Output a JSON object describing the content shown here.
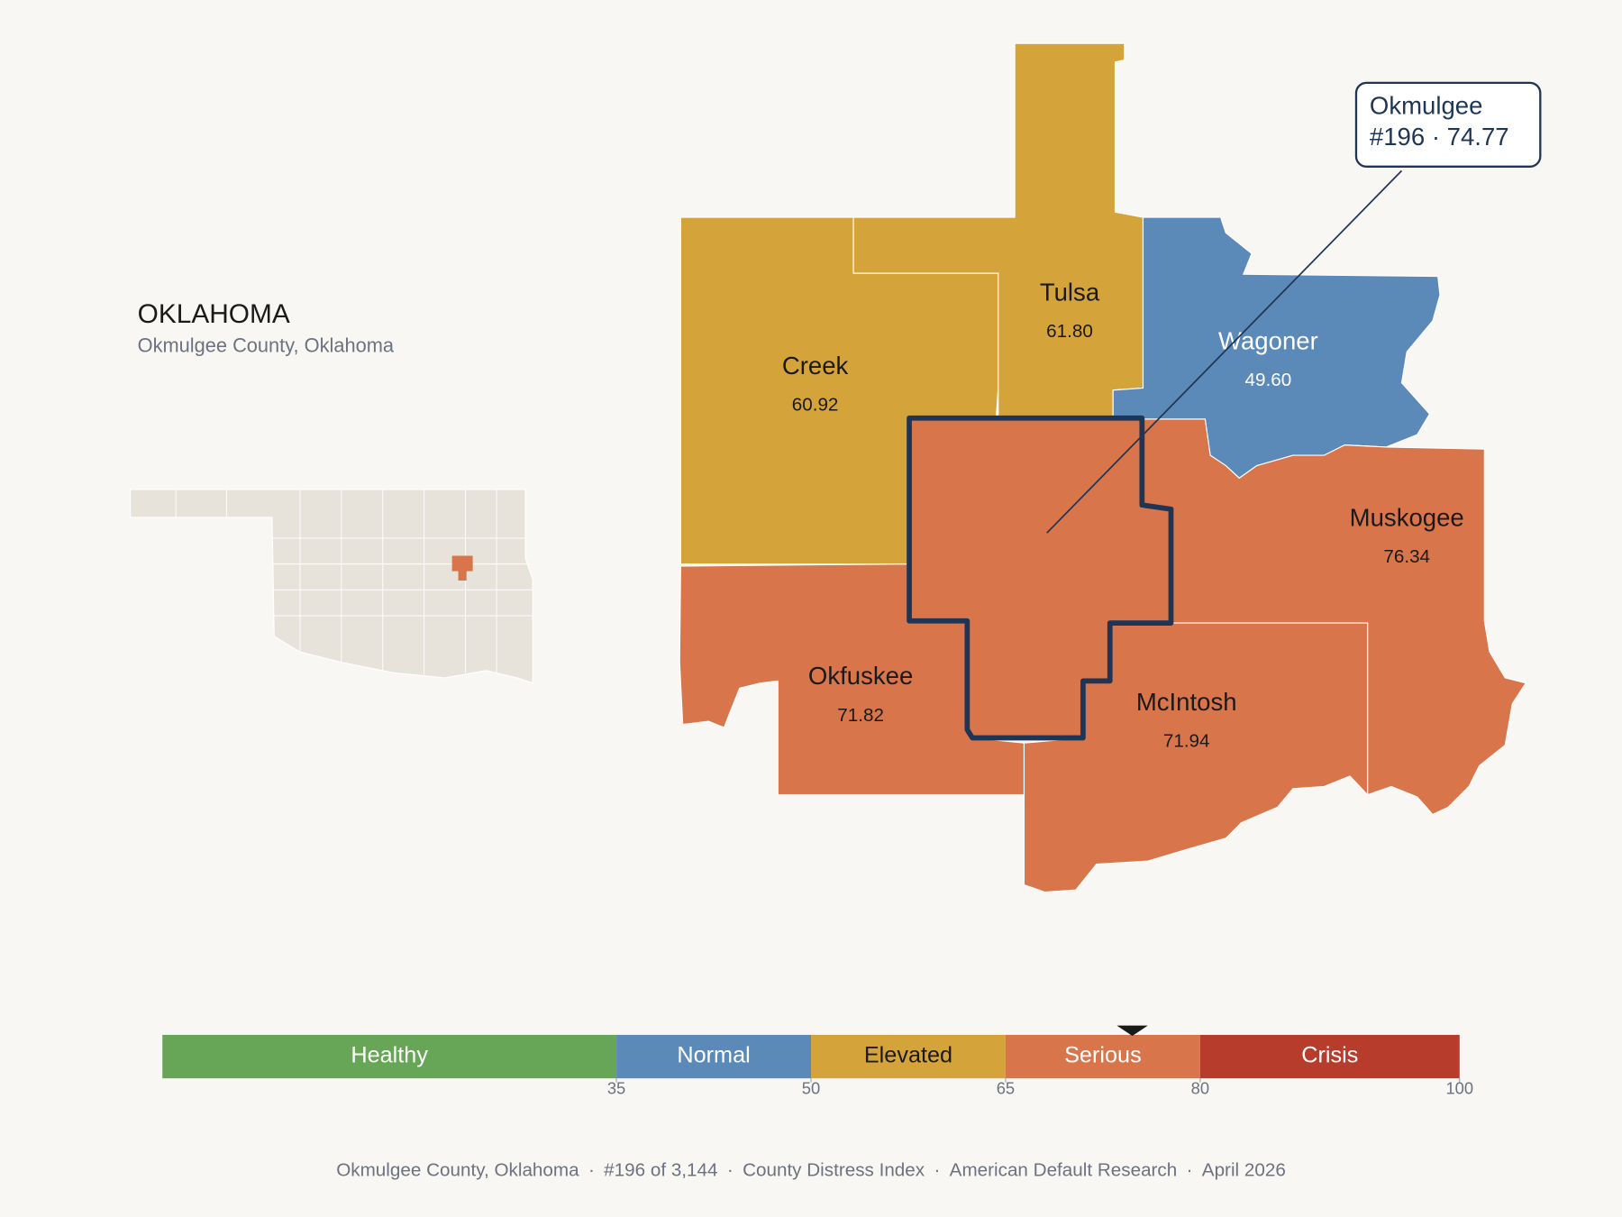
{
  "header": {
    "title": "OKLAHOMA",
    "subtitle": "Okmulgee County, Oklahoma"
  },
  "counties": [
    {
      "name": "Creek",
      "value": 60.92,
      "value_label": "60.92"
    },
    {
      "name": "Tulsa",
      "value": 61.8,
      "value_label": "61.80"
    },
    {
      "name": "Wagoner",
      "value": 49.6,
      "value_label": "49.60"
    },
    {
      "name": "Muskogee",
      "value": 76.34,
      "value_label": "76.34"
    },
    {
      "name": "Okfuskee",
      "value": 71.82,
      "value_label": "71.82"
    },
    {
      "name": "McIntosh",
      "value": 71.94,
      "value_label": "71.94"
    }
  ],
  "focus": {
    "lines": [
      "Okmulgee",
      "#196 · 74.77"
    ],
    "value": 74.77
  },
  "scale": {
    "lim": [
      0,
      100
    ],
    "ticks": [
      35,
      50,
      65,
      80,
      100
    ],
    "bands": [
      {
        "name": "Healthy",
        "color": "#67a657"
      },
      {
        "name": "Normal",
        "color": "#5b8ab8"
      },
      {
        "name": "Elevated",
        "color": "#d4a43a"
      },
      {
        "name": "Serious",
        "color": "#d9754a"
      },
      {
        "name": "Crisis",
        "color": "#b83c2c"
      }
    ]
  },
  "footer": {
    "separator": "·",
    "items": [
      "Okmulgee County, Oklahoma",
      "#196 of 3,144",
      "County Distress Index",
      "American Default Research",
      "April 2026"
    ]
  }
}
